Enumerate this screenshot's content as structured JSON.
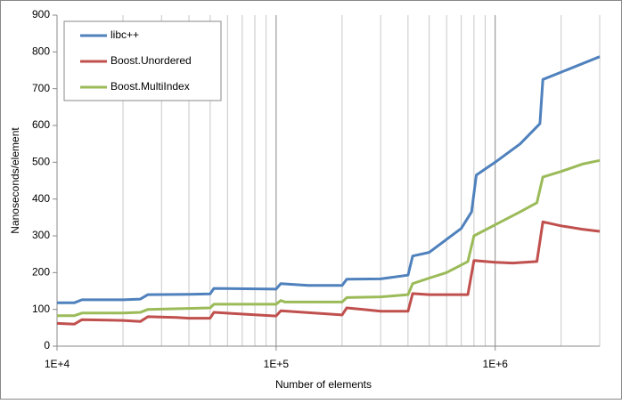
{
  "chart_data": {
    "type": "line",
    "x_label": "Number of elements",
    "y_label": "Nanoseconds/element",
    "x_log": true,
    "xlim": [
      10000,
      3000000
    ],
    "xticks": [
      {
        "value": 10000,
        "label": "1E+4"
      },
      {
        "value": 100000,
        "label": "1E+5"
      },
      {
        "value": 1000000,
        "label": "1E+6"
      }
    ],
    "x_minor_gridlines": [
      20000,
      30000,
      40000,
      50000,
      60000,
      70000,
      80000,
      90000,
      200000,
      300000,
      400000,
      500000,
      600000,
      700000,
      800000,
      900000,
      2000000,
      3000000
    ],
    "ylim": [
      0,
      900
    ],
    "yticks": [
      0,
      100,
      200,
      300,
      400,
      500,
      600,
      700,
      800,
      900
    ],
    "legend": "top-left",
    "series": [
      {
        "name": "libc++",
        "color": "#4f81bd",
        "x": [
          10000,
          12000,
          13000,
          15000,
          20000,
          24000,
          26000,
          40000,
          50000,
          52000,
          100000,
          105000,
          140000,
          200000,
          210000,
          300000,
          400000,
          420000,
          500000,
          700000,
          780000,
          820000,
          1000000,
          1300000,
          1600000,
          1650000,
          2000000,
          3000000
        ],
        "values": [
          118,
          118,
          126,
          126,
          126,
          128,
          140,
          141,
          142,
          157,
          155,
          170,
          165,
          165,
          182,
          183,
          193,
          245,
          255,
          320,
          365,
          465,
          500,
          550,
          605,
          725,
          745,
          787
        ]
      },
      {
        "name": "Boost.Unordered",
        "color": "#c0504d",
        "x": [
          10000,
          12000,
          13000,
          20000,
          24000,
          26000,
          35000,
          40000,
          50000,
          52000,
          100000,
          105000,
          200000,
          210000,
          250000,
          300000,
          400000,
          420000,
          500000,
          750000,
          800000,
          1000000,
          1200000,
          1550000,
          1650000,
          2000000,
          2500000,
          3000000
        ],
        "values": [
          62,
          60,
          72,
          70,
          67,
          80,
          78,
          76,
          76,
          92,
          82,
          96,
          85,
          104,
          100,
          95,
          95,
          143,
          140,
          140,
          233,
          228,
          226,
          230,
          338,
          327,
          318,
          312
        ]
      },
      {
        "name": "Boost.MultiIndex",
        "color": "#9bbb59",
        "x": [
          10000,
          12000,
          13000,
          20000,
          24000,
          26000,
          50000,
          52000,
          100000,
          105000,
          110000,
          200000,
          210000,
          300000,
          400000,
          420000,
          500000,
          600000,
          750000,
          800000,
          1000000,
          1300000,
          1550000,
          1650000,
          2000000,
          2500000,
          3000000
        ],
        "values": [
          83,
          83,
          90,
          90,
          92,
          100,
          104,
          114,
          114,
          124,
          120,
          120,
          132,
          134,
          140,
          170,
          185,
          200,
          230,
          300,
          330,
          365,
          390,
          460,
          475,
          495,
          505
        ]
      }
    ]
  }
}
